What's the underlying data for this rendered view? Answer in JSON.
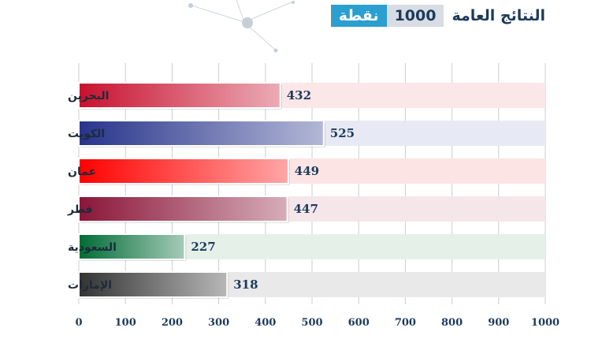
{
  "header": {
    "title": "النتائج العامة",
    "badge_number": "1000",
    "badge_unit": "نقطة"
  },
  "colors": {
    "title": "#1d3a5c",
    "badge_unit_bg": "#2a9fd0",
    "badge_number_bg": "#d8dde3",
    "grid": "#c9ccd2",
    "bars": [
      "#c8102e",
      "#27348b",
      "#ff0000",
      "#8a1538",
      "#006c35",
      "#333333"
    ],
    "tracks": [
      "#fbe6e8",
      "#e7e9f4",
      "#fde4e4",
      "#f5e6ea",
      "#e5f0e9",
      "#e9e9e9"
    ]
  },
  "chart_data": {
    "type": "bar",
    "orientation": "horizontal",
    "categories": [
      "البحرين",
      "الكويت",
      "عمان",
      "قطر",
      "السعودية",
      "الإمارات"
    ],
    "values": [
      432,
      525,
      449,
      447,
      227,
      318
    ],
    "value_labels": [
      "432",
      "525",
      "449",
      "447",
      "227",
      "318"
    ],
    "xlim": [
      0,
      1000
    ],
    "ticks": [
      "0",
      "100",
      "200",
      "300",
      "400",
      "500",
      "600",
      "700",
      "800",
      "900",
      "1000"
    ],
    "grid": true
  }
}
